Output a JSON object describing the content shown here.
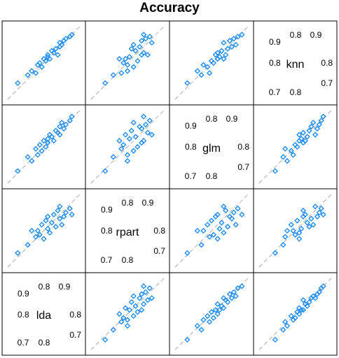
{
  "chart_data": {
    "type": "scatter",
    "subtype": "scatterplot-matrix",
    "title": "Accuracy",
    "variables": [
      "lda",
      "rpart",
      "glm",
      "knn"
    ],
    "diagonal_ticks": {
      "lda": {
        "top": [
          "0.8",
          "0.9"
        ],
        "left": [
          "0.9",
          "0.8"
        ],
        "right": [
          "0.8",
          "0.7"
        ],
        "bottom": [
          "0.7",
          "0.8"
        ]
      },
      "rpart": {
        "top": [
          "0.8",
          "0.9"
        ],
        "left": [
          "0.9",
          "0.8"
        ],
        "right": [
          "0.8",
          "0.7"
        ],
        "bottom": [
          "0.7",
          "0.8"
        ]
      },
      "glm": {
        "top": [
          "0.8",
          "0.9"
        ],
        "left": [
          "0.9",
          "0.8"
        ],
        "right": [
          "0.8",
          "0.7"
        ],
        "bottom": [
          "0.7",
          "0.8"
        ]
      },
      "knn": {
        "top": [
          "0.8",
          "0.9"
        ],
        "left": [
          "0.9",
          "0.8"
        ],
        "right": [
          "0.8",
          "0.7"
        ],
        "bottom": [
          "0.7",
          "0.8"
        ]
      }
    },
    "axis_range": [
      0.62,
      0.98
    ],
    "reference_line": "y = x (dashed)",
    "marker": "open diamond",
    "point_color": "#0080ff",
    "grid": false,
    "data": {
      "lda": [
        0.67,
        0.72,
        0.74,
        0.76,
        0.77,
        0.78,
        0.79,
        0.8,
        0.81,
        0.82,
        0.82,
        0.83,
        0.84,
        0.85,
        0.86,
        0.87,
        0.88,
        0.88,
        0.89,
        0.9,
        0.91,
        0.93,
        0.94
      ],
      "rpart": [
        0.69,
        0.73,
        0.8,
        0.77,
        0.8,
        0.78,
        0.83,
        0.76,
        0.85,
        0.81,
        0.87,
        0.79,
        0.84,
        0.88,
        0.82,
        0.9,
        0.86,
        0.92,
        0.83,
        0.87,
        0.89,
        0.91,
        0.88
      ],
      "glm": [
        0.68,
        0.75,
        0.73,
        0.79,
        0.76,
        0.81,
        0.78,
        0.83,
        0.8,
        0.84,
        0.82,
        0.86,
        0.85,
        0.83,
        0.88,
        0.87,
        0.9,
        0.86,
        0.92,
        0.89,
        0.91,
        0.93,
        0.95
      ],
      "knn": [
        0.7,
        0.74,
        0.76,
        0.75,
        0.79,
        0.8,
        0.78,
        0.82,
        0.81,
        0.83,
        0.84,
        0.82,
        0.86,
        0.85,
        0.87,
        0.84,
        0.88,
        0.9,
        0.89,
        0.91,
        0.92,
        0.93,
        0.94
      ]
    }
  }
}
